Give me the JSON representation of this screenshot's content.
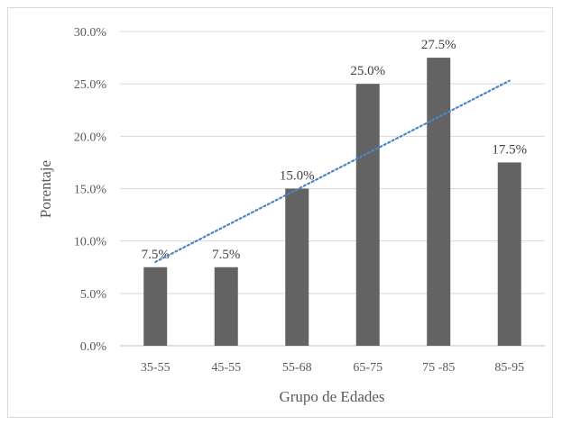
{
  "chart_data": {
    "type": "bar",
    "title": "",
    "xlabel": "Grupo de Edades",
    "ylabel": "Porentaje",
    "categories": [
      "35-55",
      "45-55",
      "55-68",
      "65-75",
      "75 -85",
      "85-95"
    ],
    "values": [
      7.5,
      7.5,
      15.0,
      25.0,
      27.5,
      17.5
    ],
    "data_labels": [
      "7.5%",
      "7.5%",
      "15.0%",
      "25.0%",
      "27.5%",
      "17.5%"
    ],
    "ylim": [
      0,
      30
    ],
    "yticks": [
      0,
      5,
      10,
      15,
      20,
      25,
      30
    ],
    "ytick_labels": [
      "0.0%",
      "5.0%",
      "10.0%",
      "15.0%",
      "20.0%",
      "25.0%",
      "30.0%"
    ],
    "grid": "horizontal",
    "legend": "none",
    "trendline": {
      "type": "linear",
      "style": "dotted",
      "start": 8.0,
      "end": 25.3
    },
    "colors": {
      "bar": "#636363",
      "trendline": "#4a86c5",
      "grid": "#d9d9d9",
      "axis": "#bfbfbf"
    }
  }
}
